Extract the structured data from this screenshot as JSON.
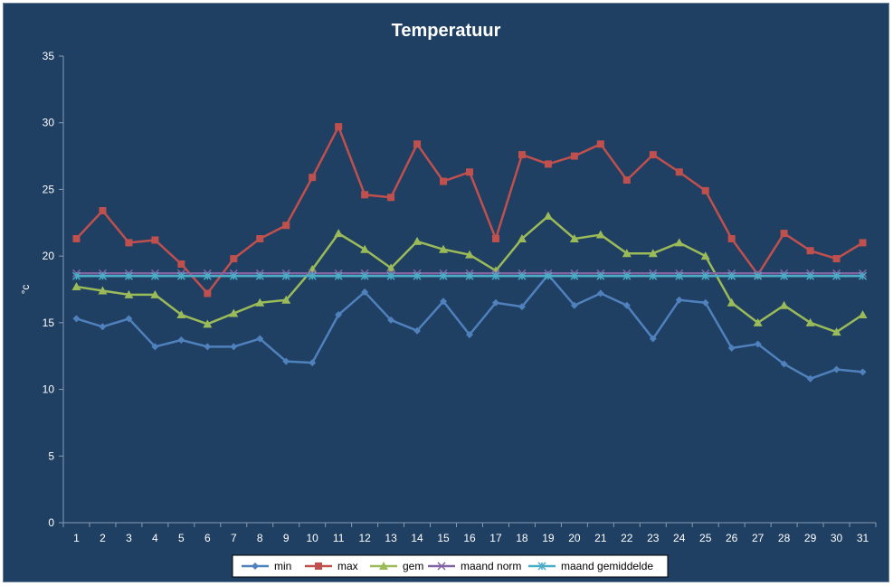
{
  "chart_data": {
    "type": "line",
    "title": "Temperatuur",
    "ylabel": "°c",
    "xlabel": "",
    "ylim": [
      0,
      35
    ],
    "yticks": [
      0,
      5,
      10,
      15,
      20,
      25,
      30,
      35
    ],
    "x": [
      1,
      2,
      3,
      4,
      5,
      6,
      7,
      8,
      9,
      10,
      11,
      12,
      13,
      14,
      15,
      16,
      17,
      18,
      19,
      20,
      21,
      22,
      23,
      24,
      25,
      26,
      27,
      28,
      29,
      30,
      31
    ],
    "grid": false,
    "legend_position": "bottom",
    "series": [
      {
        "name": "min",
        "color": "#4f81bd",
        "marker": "diamond",
        "values": [
          15.3,
          14.7,
          15.3,
          13.2,
          13.7,
          13.2,
          13.2,
          13.8,
          12.1,
          12.0,
          15.6,
          17.3,
          15.2,
          14.4,
          16.6,
          14.1,
          16.5,
          16.2,
          18.6,
          16.3,
          17.2,
          16.3,
          13.8,
          16.7,
          16.5,
          13.1,
          13.4,
          11.9,
          10.8,
          11.5,
          11.3
        ]
      },
      {
        "name": "max",
        "color": "#c0504d",
        "marker": "square",
        "values": [
          21.3,
          23.4,
          21.0,
          21.2,
          19.4,
          17.2,
          19.8,
          21.3,
          22.3,
          25.9,
          29.7,
          24.6,
          24.4,
          28.4,
          25.6,
          26.3,
          21.3,
          27.6,
          26.9,
          27.5,
          28.4,
          25.7,
          27.6,
          26.3,
          24.9,
          21.3,
          18.6,
          21.7,
          20.4,
          19.8,
          21.0
        ]
      },
      {
        "name": "gem",
        "color": "#9bbb59",
        "marker": "triangle",
        "values": [
          17.7,
          17.4,
          17.1,
          17.1,
          15.6,
          14.9,
          15.7,
          16.5,
          16.7,
          19.0,
          21.7,
          20.5,
          19.1,
          21.1,
          20.5,
          20.1,
          18.9,
          21.3,
          23.0,
          21.3,
          21.6,
          20.2,
          20.2,
          21.0,
          20.0,
          16.5,
          15.0,
          16.3,
          15.0,
          14.3,
          15.6
        ]
      },
      {
        "name": "maand norm",
        "color": "#8064a2",
        "marker": "x",
        "values": [
          18.7,
          18.7,
          18.7,
          18.7,
          18.7,
          18.7,
          18.7,
          18.7,
          18.7,
          18.7,
          18.7,
          18.7,
          18.7,
          18.7,
          18.7,
          18.7,
          18.7,
          18.7,
          18.7,
          18.7,
          18.7,
          18.7,
          18.7,
          18.7,
          18.7,
          18.7,
          18.7,
          18.7,
          18.7,
          18.7,
          18.7
        ]
      },
      {
        "name": "maand gemiddelde",
        "color": "#4bacc6",
        "marker": "star",
        "values": [
          18.5,
          18.5,
          18.5,
          18.5,
          18.5,
          18.5,
          18.5,
          18.5,
          18.5,
          18.5,
          18.5,
          18.5,
          18.5,
          18.5,
          18.5,
          18.5,
          18.5,
          18.5,
          18.5,
          18.5,
          18.5,
          18.5,
          18.5,
          18.5,
          18.5,
          18.5,
          18.5,
          18.5,
          18.5,
          18.5,
          18.5
        ]
      }
    ]
  }
}
